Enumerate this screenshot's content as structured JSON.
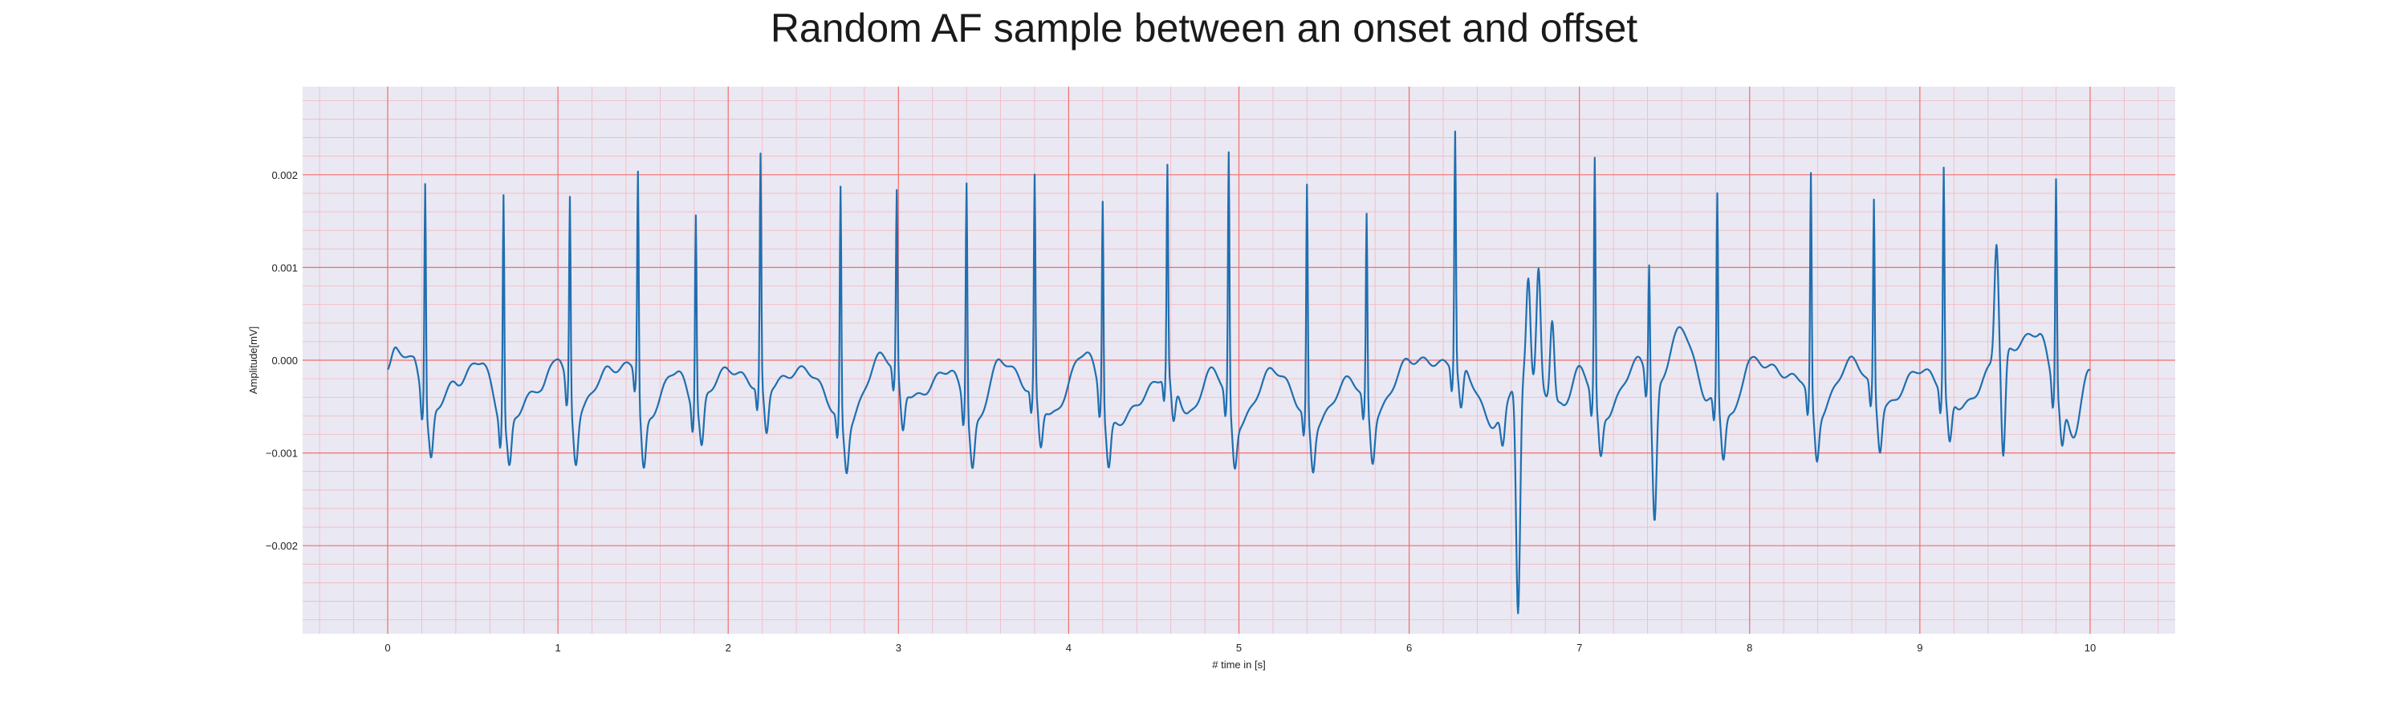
{
  "chart_data": {
    "type": "line",
    "title": "Random AF sample between an onset and offset",
    "xlabel": "# time in [s]",
    "ylabel": "Amplitude[mV]",
    "xlim": [
      -0.5,
      10.5
    ],
    "ylim": [
      -0.00295,
      0.00295
    ],
    "x_ticks": [
      0,
      1,
      2,
      3,
      4,
      5,
      6,
      7,
      8,
      9,
      10
    ],
    "y_ticks": [
      -0.002,
      -0.001,
      0.0,
      0.001,
      0.002
    ],
    "y_tick_labels": [
      "−0.002",
      "−0.001",
      "0.000",
      "0.001",
      "0.002"
    ],
    "x_tick_labels": [
      "0",
      "1",
      "2",
      "3",
      "4",
      "5",
      "6",
      "7",
      "8",
      "9",
      "10"
    ],
    "grid": true,
    "minor_grid": true,
    "background_color": "#eae8f2",
    "major_grid_color": "#f26d6d",
    "minor_grid_color": "#f3b8c0",
    "line_color": "#1f6fb0",
    "series": [
      {
        "x_start": 0.0,
        "x_end": 10.0,
        "baseline": [
          [
            0.0,
            -0.0001
          ],
          [
            0.05,
            0.00012
          ],
          [
            0.15,
            0.0
          ],
          [
            0.24,
            -0.0006
          ],
          [
            0.4,
            -0.00025
          ],
          [
            0.55,
            0.0
          ],
          [
            0.68,
            -0.0007
          ],
          [
            0.9,
            -0.0003
          ],
          [
            1.0,
            5e-05
          ],
          [
            1.1,
            -0.0006
          ],
          [
            1.3,
            -0.0001
          ],
          [
            1.45,
            -5e-05
          ],
          [
            1.5,
            -0.0007
          ],
          [
            1.7,
            -0.0001
          ],
          [
            1.8,
            -0.0005
          ],
          [
            2.0,
            -0.0001
          ],
          [
            2.2,
            -0.0003
          ],
          [
            2.45,
            -0.0001
          ],
          [
            2.7,
            -0.0007
          ],
          [
            2.9,
            5e-05
          ],
          [
            3.1,
            -0.0004
          ],
          [
            3.3,
            -0.0001
          ],
          [
            3.45,
            -0.0007
          ],
          [
            3.6,
            0.0
          ],
          [
            3.8,
            -0.00035
          ],
          [
            3.9,
            -0.0006
          ],
          [
            4.1,
            0.0001
          ],
          [
            4.25,
            -0.0007
          ],
          [
            4.6,
            -0.00015
          ],
          [
            4.7,
            -0.0006
          ],
          [
            4.85,
            -0.0001
          ],
          [
            5.0,
            -0.0007
          ],
          [
            5.2,
            -0.0001
          ],
          [
            5.45,
            -0.0007
          ],
          [
            5.65,
            -0.0002
          ],
          [
            5.8,
            -0.0006
          ],
          [
            6.0,
            0.0
          ],
          [
            6.3,
            -5e-05
          ],
          [
            6.5,
            -0.0007
          ],
          [
            6.65,
            -0.00015
          ],
          [
            6.9,
            -0.0005
          ],
          [
            7.0,
            -0.0001
          ],
          [
            7.15,
            -0.0006
          ],
          [
            7.35,
            0.0
          ],
          [
            7.45,
            -0.0003
          ],
          [
            7.6,
            0.00035
          ],
          [
            7.75,
            -0.0004
          ],
          [
            7.9,
            -0.0006
          ],
          [
            8.0,
            0.0
          ],
          [
            8.3,
            -0.0002
          ],
          [
            8.4,
            -0.0006
          ],
          [
            8.6,
            0.0
          ],
          [
            8.8,
            -0.0005
          ],
          [
            9.0,
            -0.0001
          ],
          [
            9.25,
            -0.0005
          ],
          [
            9.5,
            0.0001
          ],
          [
            9.7,
            0.0003
          ],
          [
            9.8,
            -0.0003
          ],
          [
            9.9,
            -0.0008
          ],
          [
            10.0,
            -0.0001
          ]
        ],
        "r_peaks": [
          [
            0.22,
            0.00245
          ],
          [
            0.68,
            0.0025
          ],
          [
            1.07,
            0.0022
          ],
          [
            1.47,
            0.00235
          ],
          [
            1.81,
            0.0021
          ],
          [
            2.19,
            0.0025
          ],
          [
            2.66,
            0.0025
          ],
          [
            2.99,
            0.00195
          ],
          [
            3.4,
            0.0025
          ],
          [
            3.8,
            0.00232
          ],
          [
            4.2,
            0.00225
          ],
          [
            4.58,
            0.00225
          ],
          [
            4.94,
            0.0027
          ],
          [
            5.4,
            0.0025
          ],
          [
            5.75,
            0.00205
          ],
          [
            6.27,
            0.00255
          ],
          [
            7.09,
            0.0026
          ],
          [
            7.41,
            0.0013
          ],
          [
            7.81,
            0.00225
          ],
          [
            8.36,
            0.00245
          ],
          [
            8.73,
            0.00208
          ],
          [
            9.14,
            0.00242
          ],
          [
            9.8,
            0.0023
          ]
        ],
        "events": [
          [
            6.55,
            -0.0004
          ],
          [
            6.64,
            -0.0026
          ],
          [
            6.7,
            0.0011
          ],
          [
            6.76,
            0.00125
          ],
          [
            6.84,
            0.0009
          ],
          [
            9.45,
            0.00125
          ],
          [
            9.49,
            -0.00115
          ],
          [
            7.44,
            -0.001
          ]
        ]
      }
    ]
  }
}
